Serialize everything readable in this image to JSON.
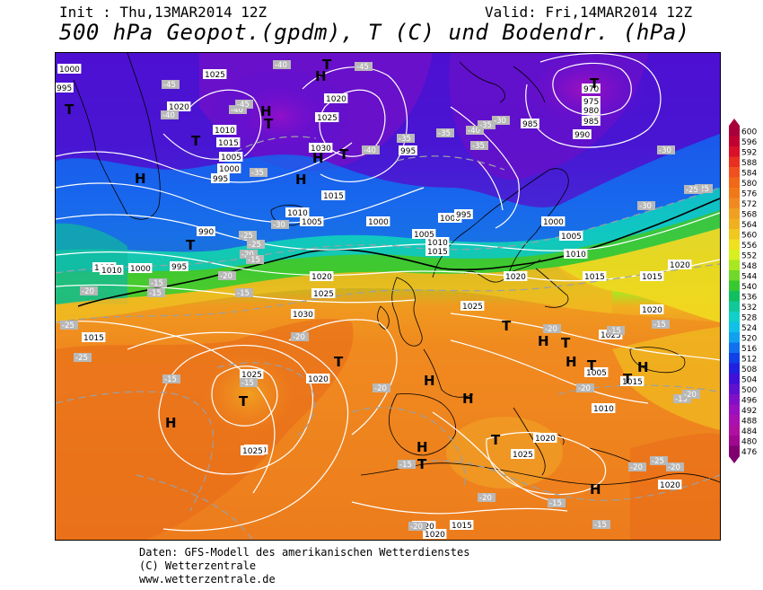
{
  "header": {
    "init": "Init : Thu,13MAR2014 12Z",
    "valid": "Valid: Fri,14MAR2014 12Z",
    "title": "500 hPa Geopot.(gpdm), T (C) und Bodendr. (hPa)"
  },
  "footer": {
    "line1": "Daten: GFS-Modell des amerikanischen Wetterdienstes",
    "line2": "(C) Wetterzentrale",
    "line3": "www.wetterzentrale.de"
  },
  "colors": {
    "border": "#000000",
    "isobars": "#ffffff",
    "isotherms": "#aaaaaa",
    "coastlines": "#000000",
    "land_contour_552": "#000000"
  },
  "legend": {
    "values": [
      "600",
      "596",
      "592",
      "588",
      "584",
      "580",
      "576",
      "572",
      "568",
      "564",
      "560",
      "556",
      "552",
      "548",
      "544",
      "540",
      "536",
      "532",
      "528",
      "524",
      "520",
      "516",
      "512",
      "508",
      "504",
      "500",
      "496",
      "492",
      "488",
      "484",
      "480",
      "476"
    ],
    "colors": [
      "#a8003a",
      "#c00030",
      "#d8102a",
      "#e83020",
      "#f05020",
      "#f06818",
      "#f07818",
      "#f08a20",
      "#f0a020",
      "#f0b020",
      "#f0c820",
      "#f0e020",
      "#d8f020",
      "#a8e820",
      "#70d828",
      "#38c830",
      "#10c060",
      "#10c898",
      "#10d0c8",
      "#10c0e8",
      "#10a0f0",
      "#1070f0",
      "#1040e8",
      "#2020e0",
      "#4010d8",
      "#6010d0",
      "#8010c8",
      "#9810c0",
      "#a810b0",
      "#b010a0",
      "#a00890",
      "#800070"
    ]
  },
  "map": {
    "isobar_labels": [
      "1000",
      "995",
      "1025",
      "1020",
      "1010",
      "1015",
      "1005",
      "1000",
      "995",
      "1020",
      "1025",
      "1030",
      "1015",
      "1010",
      "1005",
      "1000",
      "995",
      "1000",
      "1005",
      "1010",
      "1015",
      "970",
      "975",
      "980",
      "985",
      "990",
      "985",
      "995",
      "1000",
      "1005",
      "1010",
      "1015",
      "1020",
      "1025",
      "990",
      "995",
      "1000",
      "1005",
      "1010",
      "1015",
      "1020",
      "1025",
      "1030",
      "1020",
      "1025",
      "1030",
      "1025",
      "1020",
      "1015",
      "1020",
      "1025",
      "1020",
      "1015",
      "1020",
      "1020",
      "1025",
      "1005",
      "1010",
      "1015",
      "1020"
    ],
    "temp_labels": [
      "-45",
      "-40",
      "-45",
      "-40",
      "-45",
      "-40",
      "-35",
      "-40",
      "-35",
      "-35",
      "-40",
      "-35",
      "-30",
      "-35",
      "-30",
      "-25",
      "-25",
      "-30",
      "-30",
      "-25",
      "-25",
      "-20",
      "-15",
      "-20",
      "-15",
      "-15",
      "-15",
      "-20",
      "-25",
      "-25",
      "-15",
      "-15",
      "-20",
      "-20",
      "-15",
      "-20",
      "-15",
      "-15",
      "-20",
      "-20",
      "-25",
      "-20",
      "-15",
      "-20",
      "-15",
      "-15",
      "-20",
      "-20"
    ],
    "hl_labels": [
      {
        "t": "H"
      },
      {
        "t": "T"
      },
      {
        "t": "H"
      },
      {
        "t": "T"
      },
      {
        "t": "H"
      },
      {
        "t": "T"
      },
      {
        "t": "H"
      },
      {
        "t": "T"
      },
      {
        "t": "H"
      },
      {
        "t": "T"
      },
      {
        "t": "T"
      },
      {
        "t": "H"
      },
      {
        "t": "T"
      },
      {
        "t": "H"
      },
      {
        "t": "T"
      },
      {
        "t": "H"
      },
      {
        "t": "T"
      },
      {
        "t": "H"
      },
      {
        "t": "T"
      },
      {
        "t": "H"
      },
      {
        "t": "T"
      },
      {
        "t": "H"
      },
      {
        "t": "T"
      },
      {
        "t": "T"
      },
      {
        "t": "H"
      },
      {
        "t": "T"
      },
      {
        "t": "H"
      },
      {
        "t": "T"
      }
    ]
  }
}
